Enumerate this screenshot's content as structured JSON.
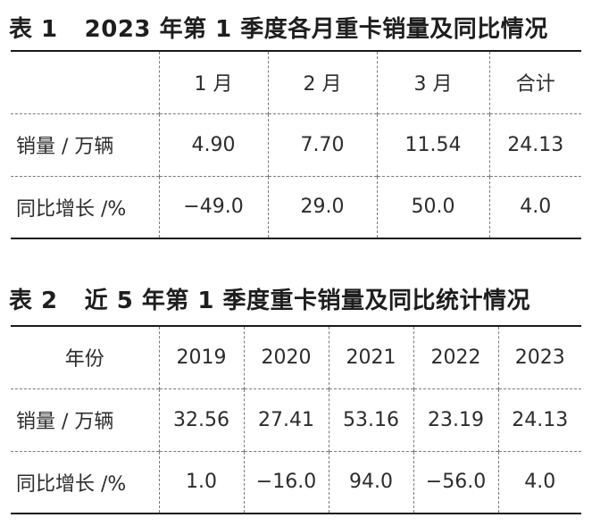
{
  "table1": {
    "caption_num": "表 1",
    "caption_text": "2023 年第 1 季度各月重卡销量及同比情况",
    "header": [
      "",
      "1 月",
      "2 月",
      "3 月",
      "合计"
    ],
    "rows": [
      [
        "销量 / 万辆",
        "4.90",
        "7.70",
        "11.54",
        "24.13"
      ],
      [
        "同比增长 /%",
        "−49.0",
        "29.0",
        "50.0",
        "4.0"
      ]
    ]
  },
  "table2": {
    "caption_num": "表 2",
    "caption_text": "近 5 年第 1 季度重卡销量及同比统计情况",
    "header": [
      "年份",
      "2019",
      "2020",
      "2021",
      "2022",
      "2023"
    ],
    "rows": [
      [
        "销量 / 万辆",
        "32.56",
        "27.41",
        "53.16",
        "23.19",
        "24.13"
      ],
      [
        "同比增长 /%",
        "1.0",
        "−16.0",
        "94.0",
        "−56.0",
        "4.0"
      ]
    ]
  }
}
